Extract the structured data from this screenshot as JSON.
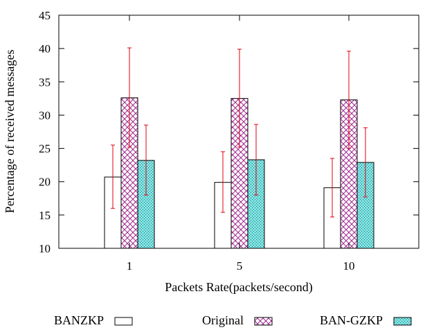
{
  "chart_data": {
    "type": "bar",
    "title": "",
    "xlabel": "Packets Rate(packets/second)",
    "ylabel": "Percentage of received messages",
    "categories": [
      "1",
      "5",
      "10"
    ],
    "ylim": [
      10,
      45
    ],
    "yticks": [
      10,
      15,
      20,
      25,
      30,
      35,
      40,
      45
    ],
    "grid": false,
    "legend_position": "bottom",
    "error_bar_color": "#e0000f",
    "series": [
      {
        "name": "BANZKP",
        "values": [
          20.7,
          19.9,
          19.1
        ],
        "err_low": [
          16.0,
          15.4,
          14.7
        ],
        "err_high": [
          25.5,
          24.5,
          23.5
        ],
        "fill": "#ffffff",
        "pattern": "none",
        "pattern_color": "#000000"
      },
      {
        "name": "Original",
        "values": [
          32.6,
          32.5,
          32.3
        ],
        "err_low": [
          25.2,
          25.2,
          25.0
        ],
        "err_high": [
          40.1,
          39.9,
          39.6
        ],
        "fill": "#ffffff",
        "pattern": "crosshatch",
        "pattern_color": "#a0278f"
      },
      {
        "name": "BAN-GZKP",
        "values": [
          23.2,
          23.3,
          22.9
        ],
        "err_low": [
          18.0,
          18.0,
          17.7
        ],
        "err_high": [
          28.5,
          28.6,
          28.1
        ],
        "fill": "#7fe3e3",
        "pattern": "dots",
        "pattern_color": "#1f6f6f"
      }
    ]
  }
}
